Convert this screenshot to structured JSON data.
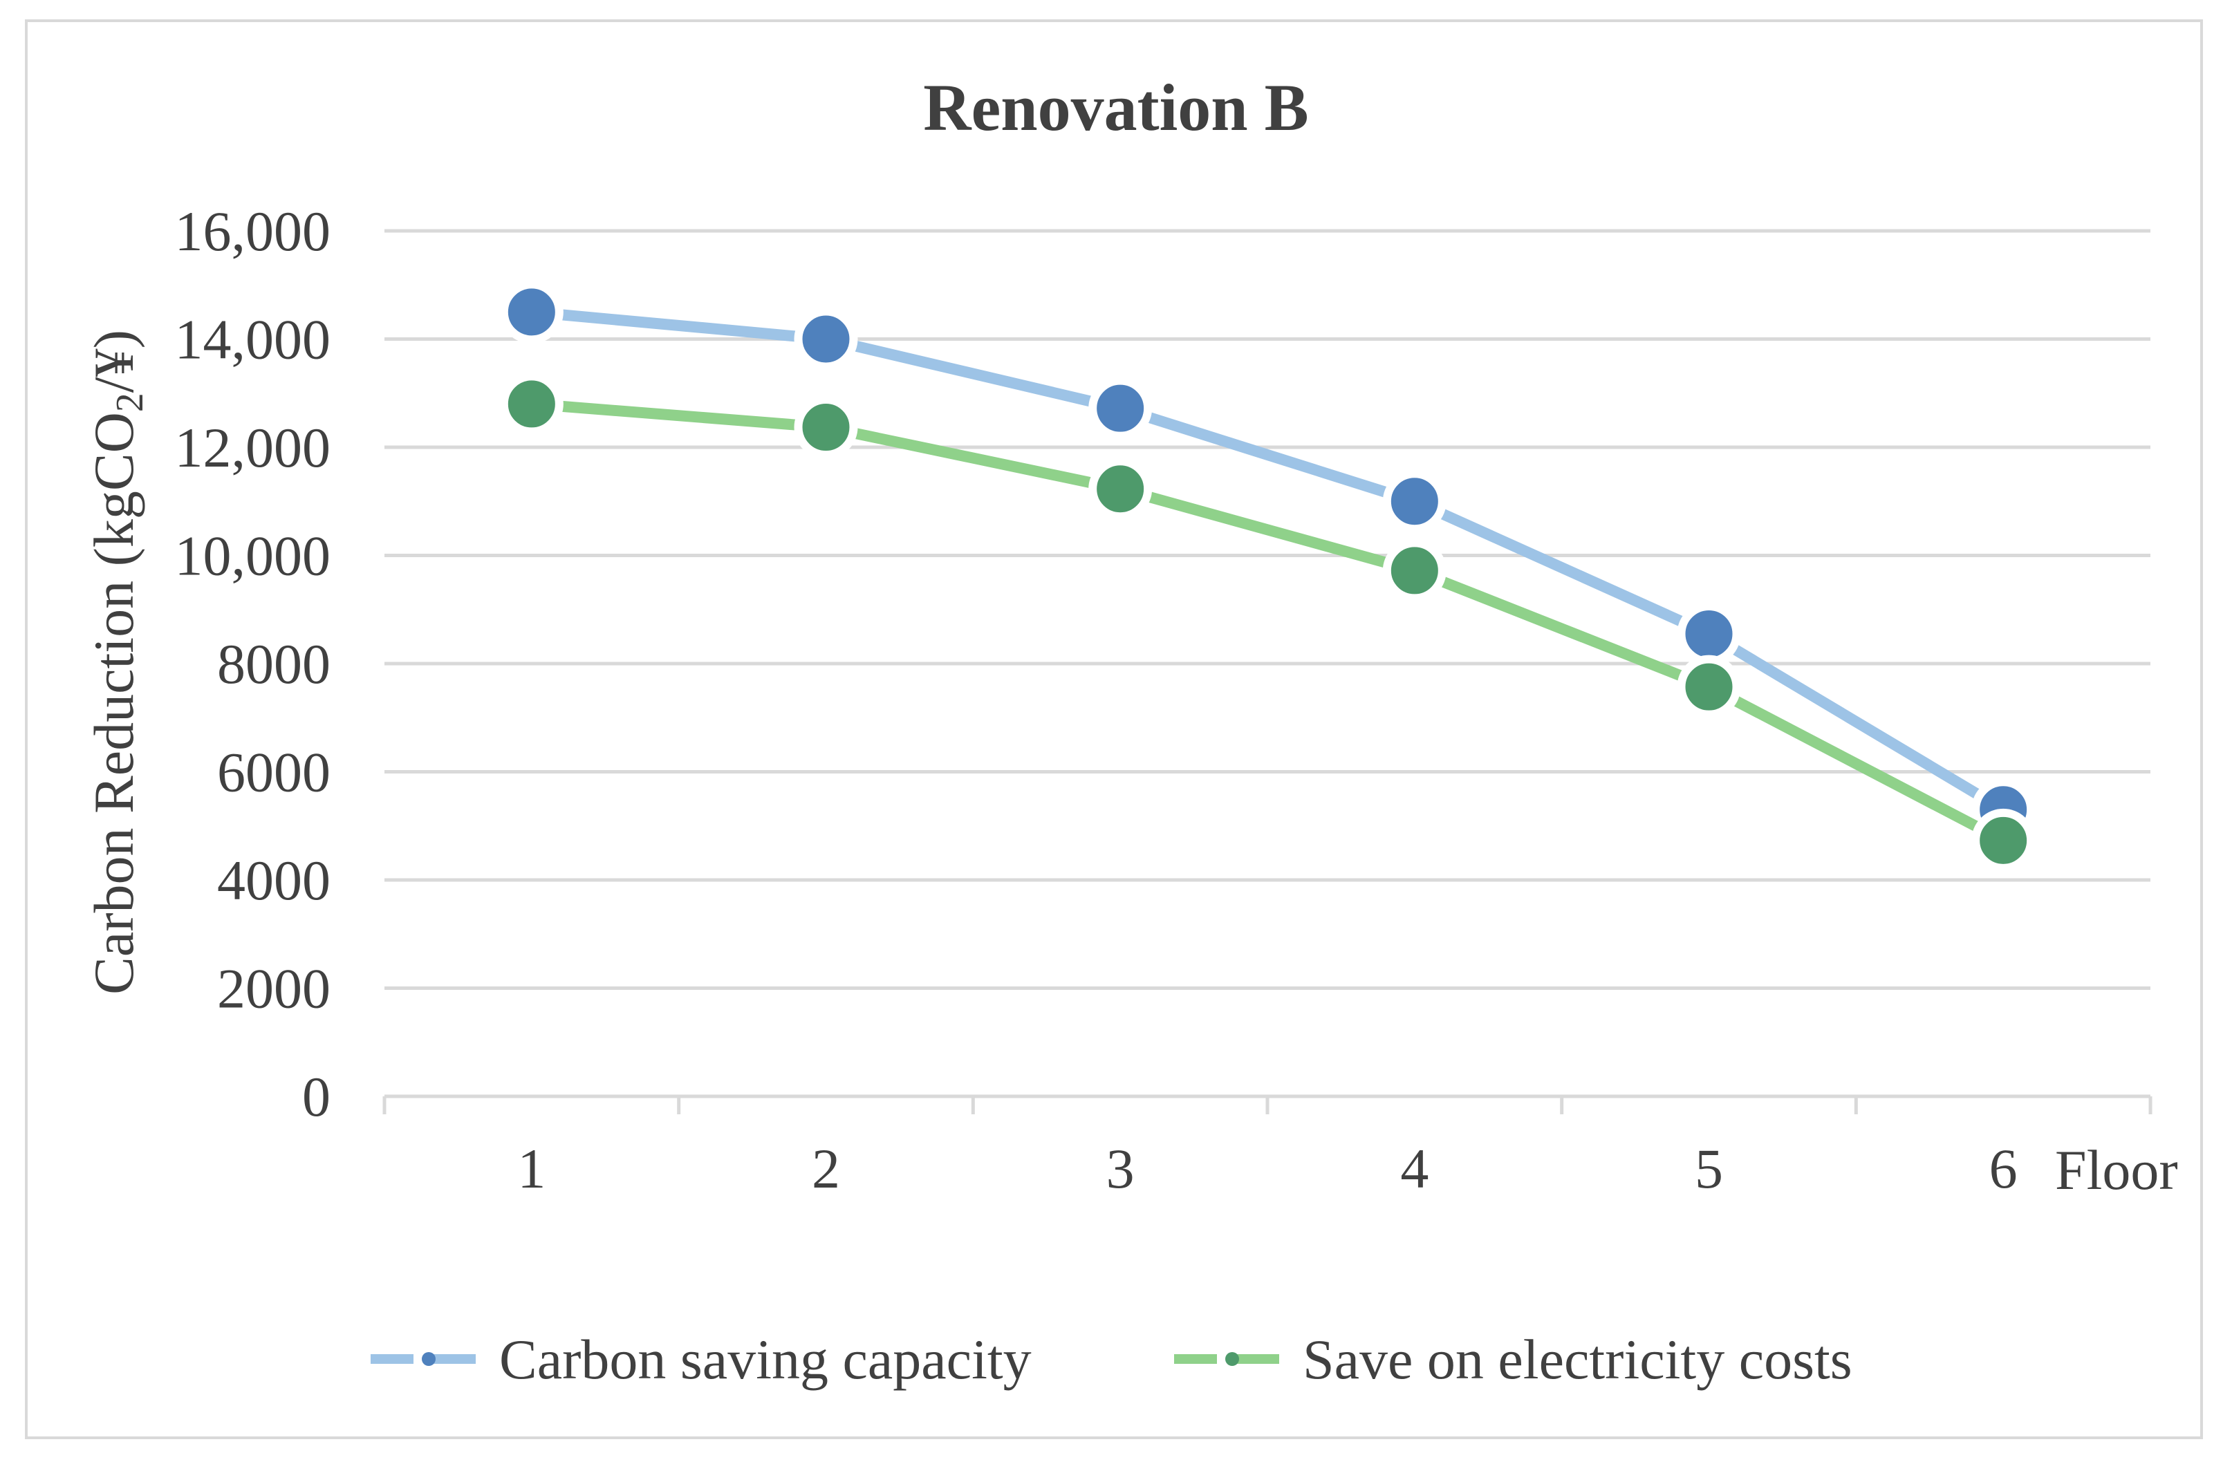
{
  "chart_data": {
    "type": "line",
    "title": "Renovation B",
    "xlabel": "Floor",
    "ylabel_main": "Carbon Reduction (kgCO",
    "ylabel_sub": "2",
    "ylabel_tail": "/¥)",
    "categories": [
      "1",
      "2",
      "3",
      "4",
      "5",
      "6"
    ],
    "ylim": [
      0,
      16000
    ],
    "yticks": [
      0,
      2000,
      4000,
      6000,
      8000,
      10000,
      12000,
      14000,
      16000
    ],
    "ytick_labels": [
      "0",
      "2000",
      "4000",
      "6000",
      "8000",
      "10,000",
      "12,000",
      "14,000",
      "16,000"
    ],
    "grid": true,
    "legend_position": "bottom",
    "series": [
      {
        "name": "Carbon saving capacity",
        "values": [
          14500,
          14000,
          12720,
          11000,
          8550,
          5300
        ],
        "line_color": "#9dc3e6",
        "marker_color": "#4f81bd"
      },
      {
        "name": "Save on electricity costs",
        "values": [
          12800,
          12370,
          11230,
          9720,
          7570,
          4730
        ],
        "line_color": "#8fd18a",
        "marker_color": "#4e9a6b"
      }
    ]
  }
}
